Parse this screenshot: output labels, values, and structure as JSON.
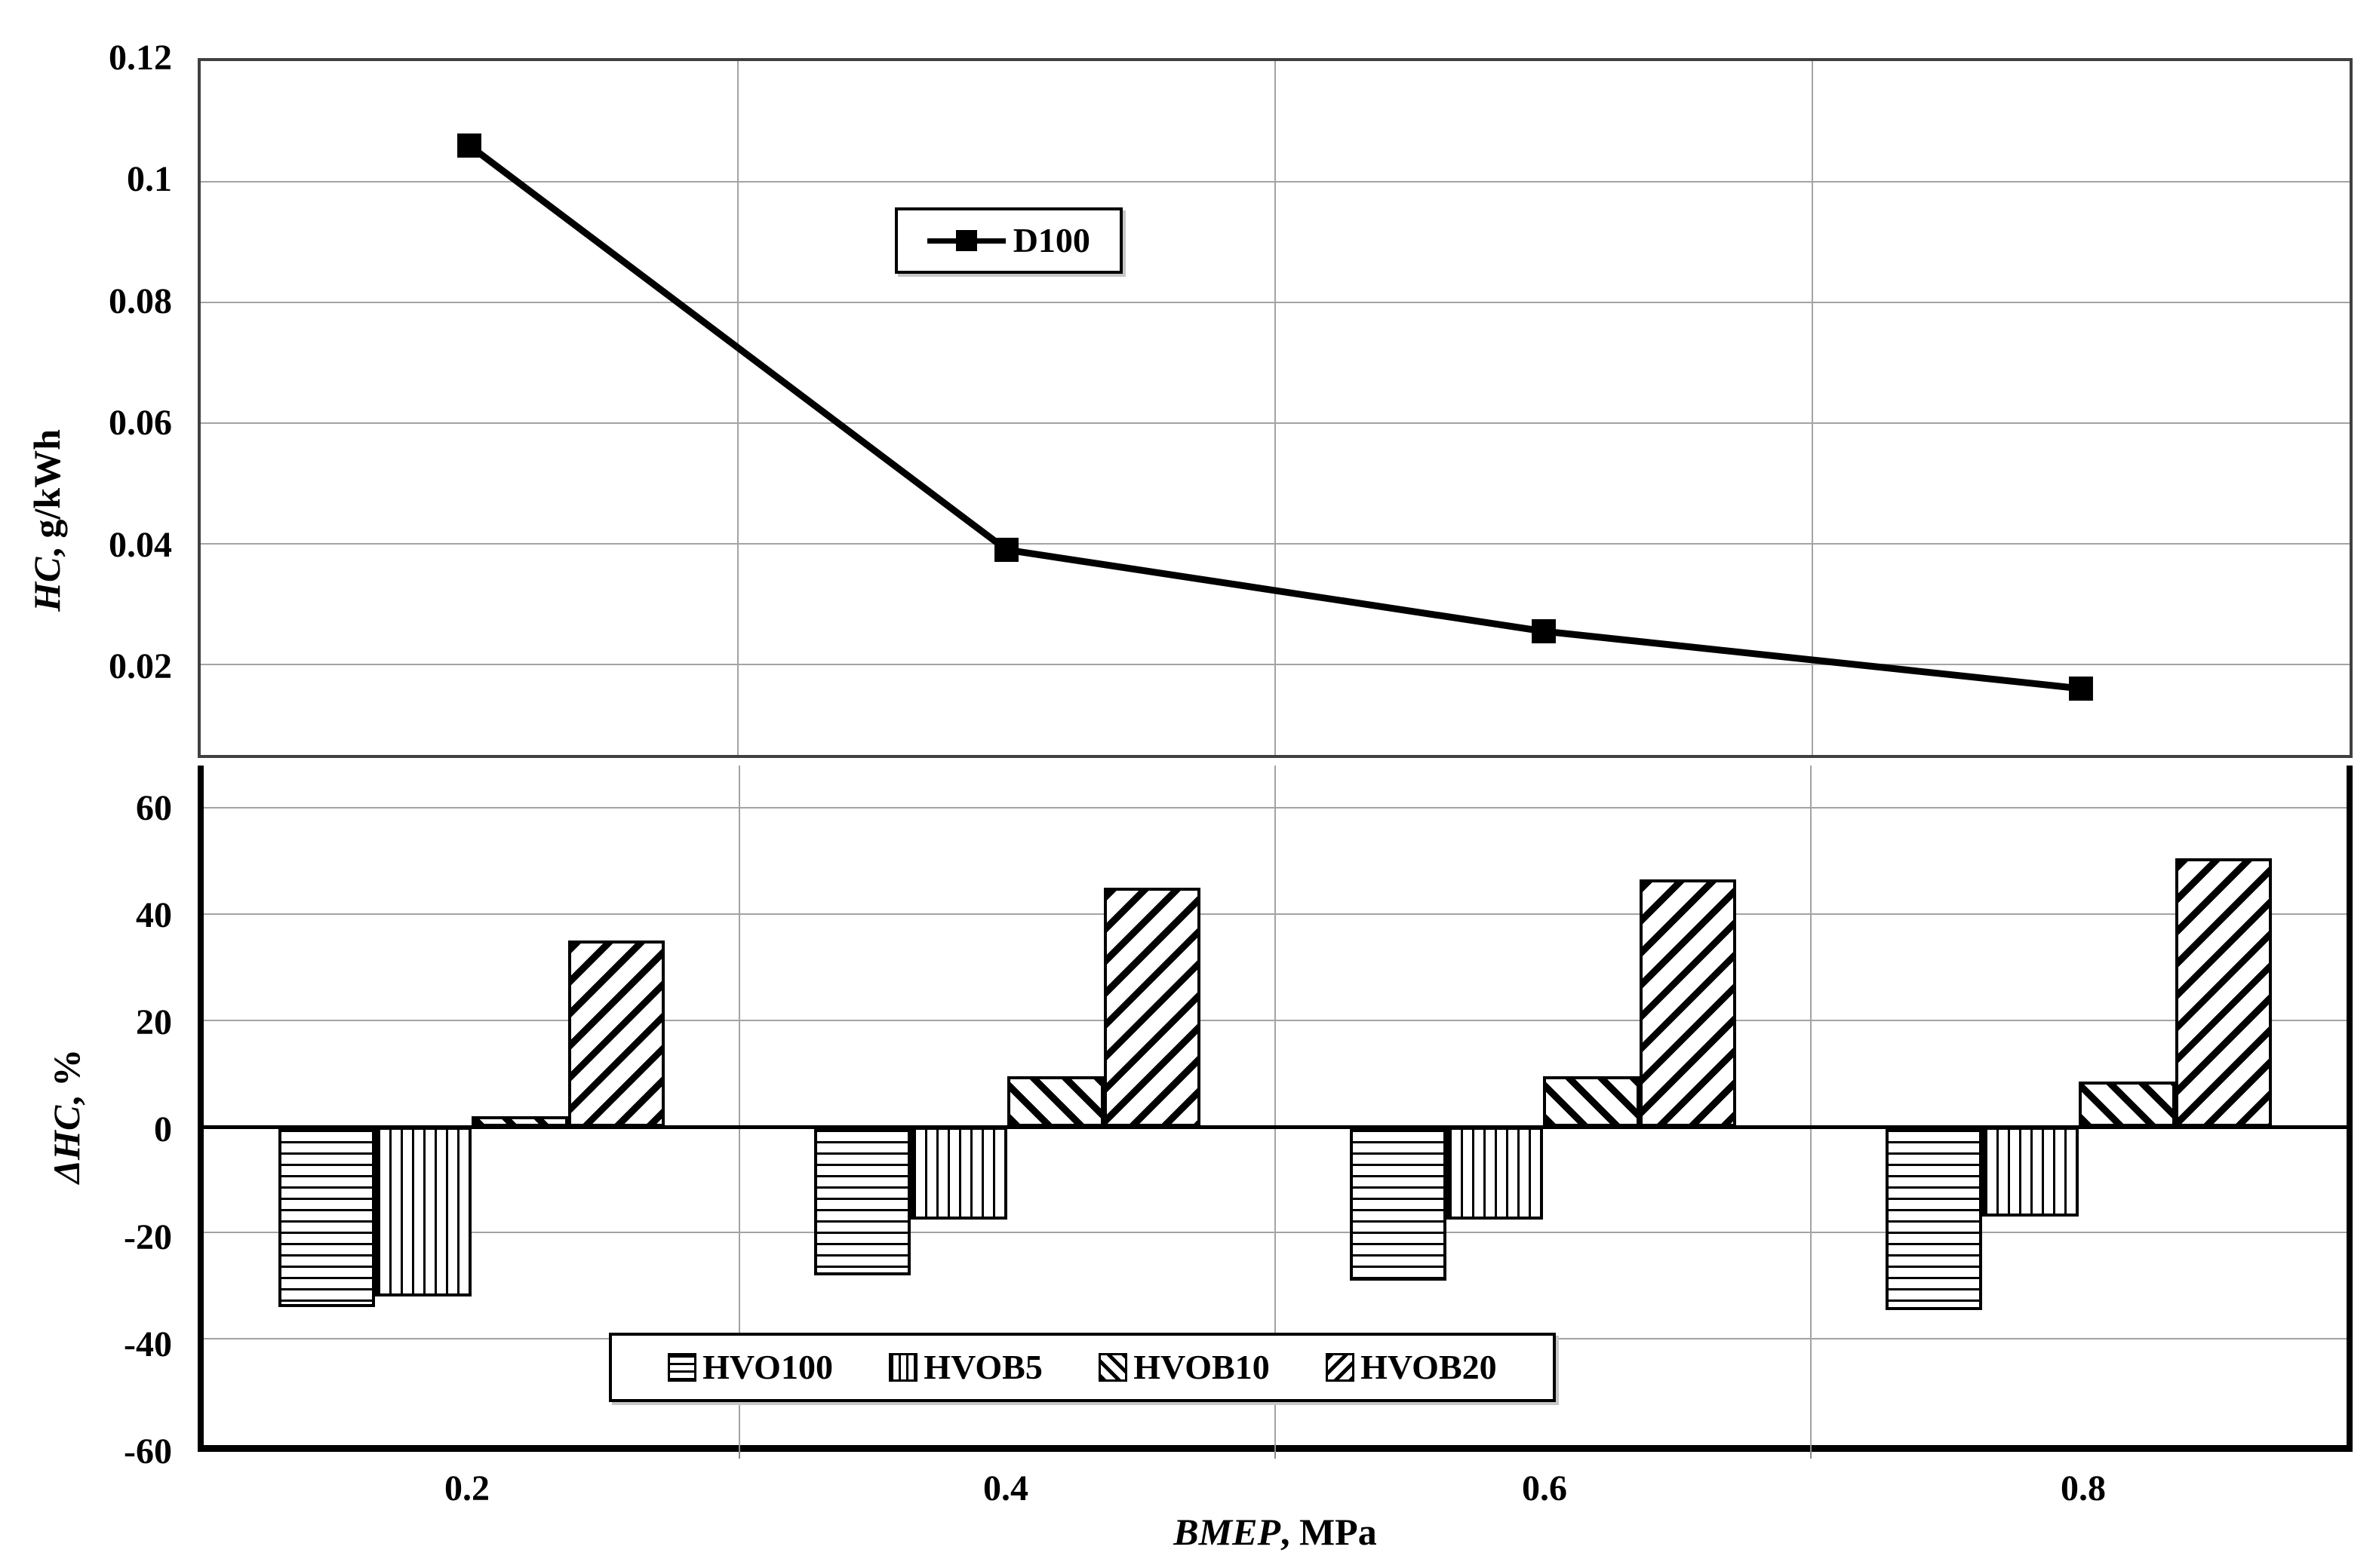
{
  "colors": {
    "ink": "#000000",
    "grid": "#a3a3a3",
    "frame": "#404040",
    "background": "#ffffff",
    "shadow": "#c7c7c7"
  },
  "top_axis": {
    "ylabel_italic": "HC",
    "ylabel_rest": ", g/kWh",
    "yticks": [
      {
        "label": "0.12",
        "value": 0.12
      },
      {
        "label": "0.1",
        "value": 0.1
      },
      {
        "label": "0.08",
        "value": 0.08
      },
      {
        "label": "0.06",
        "value": 0.06
      },
      {
        "label": "0.04",
        "value": 0.04
      },
      {
        "label": "0.02",
        "value": 0.02
      }
    ]
  },
  "bottom_axis": {
    "ylabel_italic": "ΔHC",
    "ylabel_rest": ", %",
    "yticks": [
      {
        "label": "60",
        "value": 60
      },
      {
        "label": "40",
        "value": 40
      },
      {
        "label": "20",
        "value": 20
      },
      {
        "label": "0",
        "value": 0
      },
      {
        "label": "-20",
        "value": -20
      },
      {
        "label": "-40",
        "value": -40
      },
      {
        "label": "-60",
        "value": -60
      }
    ],
    "xticks": [
      "0.2",
      "0.4",
      "0.6",
      "0.8"
    ],
    "xlabel_italic": "BMEP",
    "xlabel_rest": ", MPa"
  },
  "legend_top": {
    "label": "D100"
  },
  "legend_bottom": {
    "entries": [
      {
        "label": "HVO100",
        "hatch": "horizontal"
      },
      {
        "label": "HVOB5",
        "hatch": "vertical"
      },
      {
        "label": "HVOB10",
        "hatch": "diag-back"
      },
      {
        "label": "HVOB20",
        "hatch": "diag-fwd"
      }
    ]
  },
  "chart_data": [
    {
      "type": "line",
      "title": "",
      "x": [
        0.2,
        0.4,
        0.6,
        0.8
      ],
      "series": [
        {
          "name": "D100",
          "values": [
            0.106,
            0.039,
            0.0255,
            0.016
          ],
          "color": "#000000",
          "marker": "filled-square"
        }
      ],
      "xlabel": "BMEP, MPa",
      "ylabel": "HC, g/kWh",
      "ylim": [
        0.005,
        0.12
      ],
      "ytick_values": [
        0.12,
        0.1,
        0.08,
        0.06,
        0.04,
        0.02
      ],
      "grid": true,
      "legend_position": "inside-upper-middle"
    },
    {
      "type": "bar",
      "title": "",
      "categories": [
        0.2,
        0.4,
        0.6,
        0.8
      ],
      "series": [
        {
          "name": "HVO100",
          "hatch": "horizontal",
          "values": [
            -34,
            -28,
            -29,
            -34.5
          ]
        },
        {
          "name": "HVOB5",
          "hatch": "vertical",
          "values": [
            -32,
            -17.5,
            -17.5,
            -17
          ]
        },
        {
          "name": "HVOB10",
          "hatch": "diag-back",
          "values": [
            2,
            9.5,
            9.5,
            8.5
          ]
        },
        {
          "name": "HVOB20",
          "hatch": "diag-fwd",
          "values": [
            35,
            45,
            46.5,
            50.5
          ]
        }
      ],
      "xlabel": "BMEP, MPa",
      "ylabel": "ΔHC, %",
      "ylim": [
        -60,
        68
      ],
      "ytick_values": [
        60,
        40,
        20,
        0,
        -20,
        -40,
        -60
      ],
      "grid": true,
      "legend_position": "inside-lower-middle"
    }
  ]
}
